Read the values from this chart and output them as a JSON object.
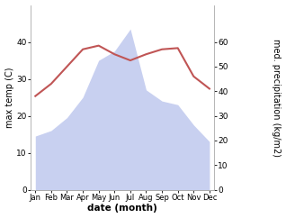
{
  "months": [
    "Jan",
    "Feb",
    "Mar",
    "Apr",
    "May",
    "Jun",
    "Jul",
    "Aug",
    "Sep",
    "Oct",
    "Nov",
    "Dec"
  ],
  "max_temp": [
    14.5,
    16.0,
    19.5,
    25.0,
    35.0,
    37.5,
    43.5,
    27.0,
    24.0,
    23.0,
    17.5,
    13.0
  ],
  "precipitation": [
    38.0,
    43.0,
    50.0,
    57.0,
    58.5,
    55.0,
    52.5,
    55.0,
    57.0,
    57.5,
    46.0,
    41.0
  ],
  "precip_color": "#c05555",
  "fill_color": "#c8d0f0",
  "temp_ylim": [
    0,
    50
  ],
  "precip_ylim": [
    0,
    75
  ],
  "temp_yticks": [
    0,
    10,
    20,
    30,
    40
  ],
  "precip_yticks": [
    0,
    10,
    20,
    30,
    40,
    50,
    60
  ],
  "xlabel": "date (month)",
  "ylabel_left": "max temp (C)",
  "ylabel_right": "med. precipitation (kg/m2)",
  "bg_color": "#ffffff"
}
